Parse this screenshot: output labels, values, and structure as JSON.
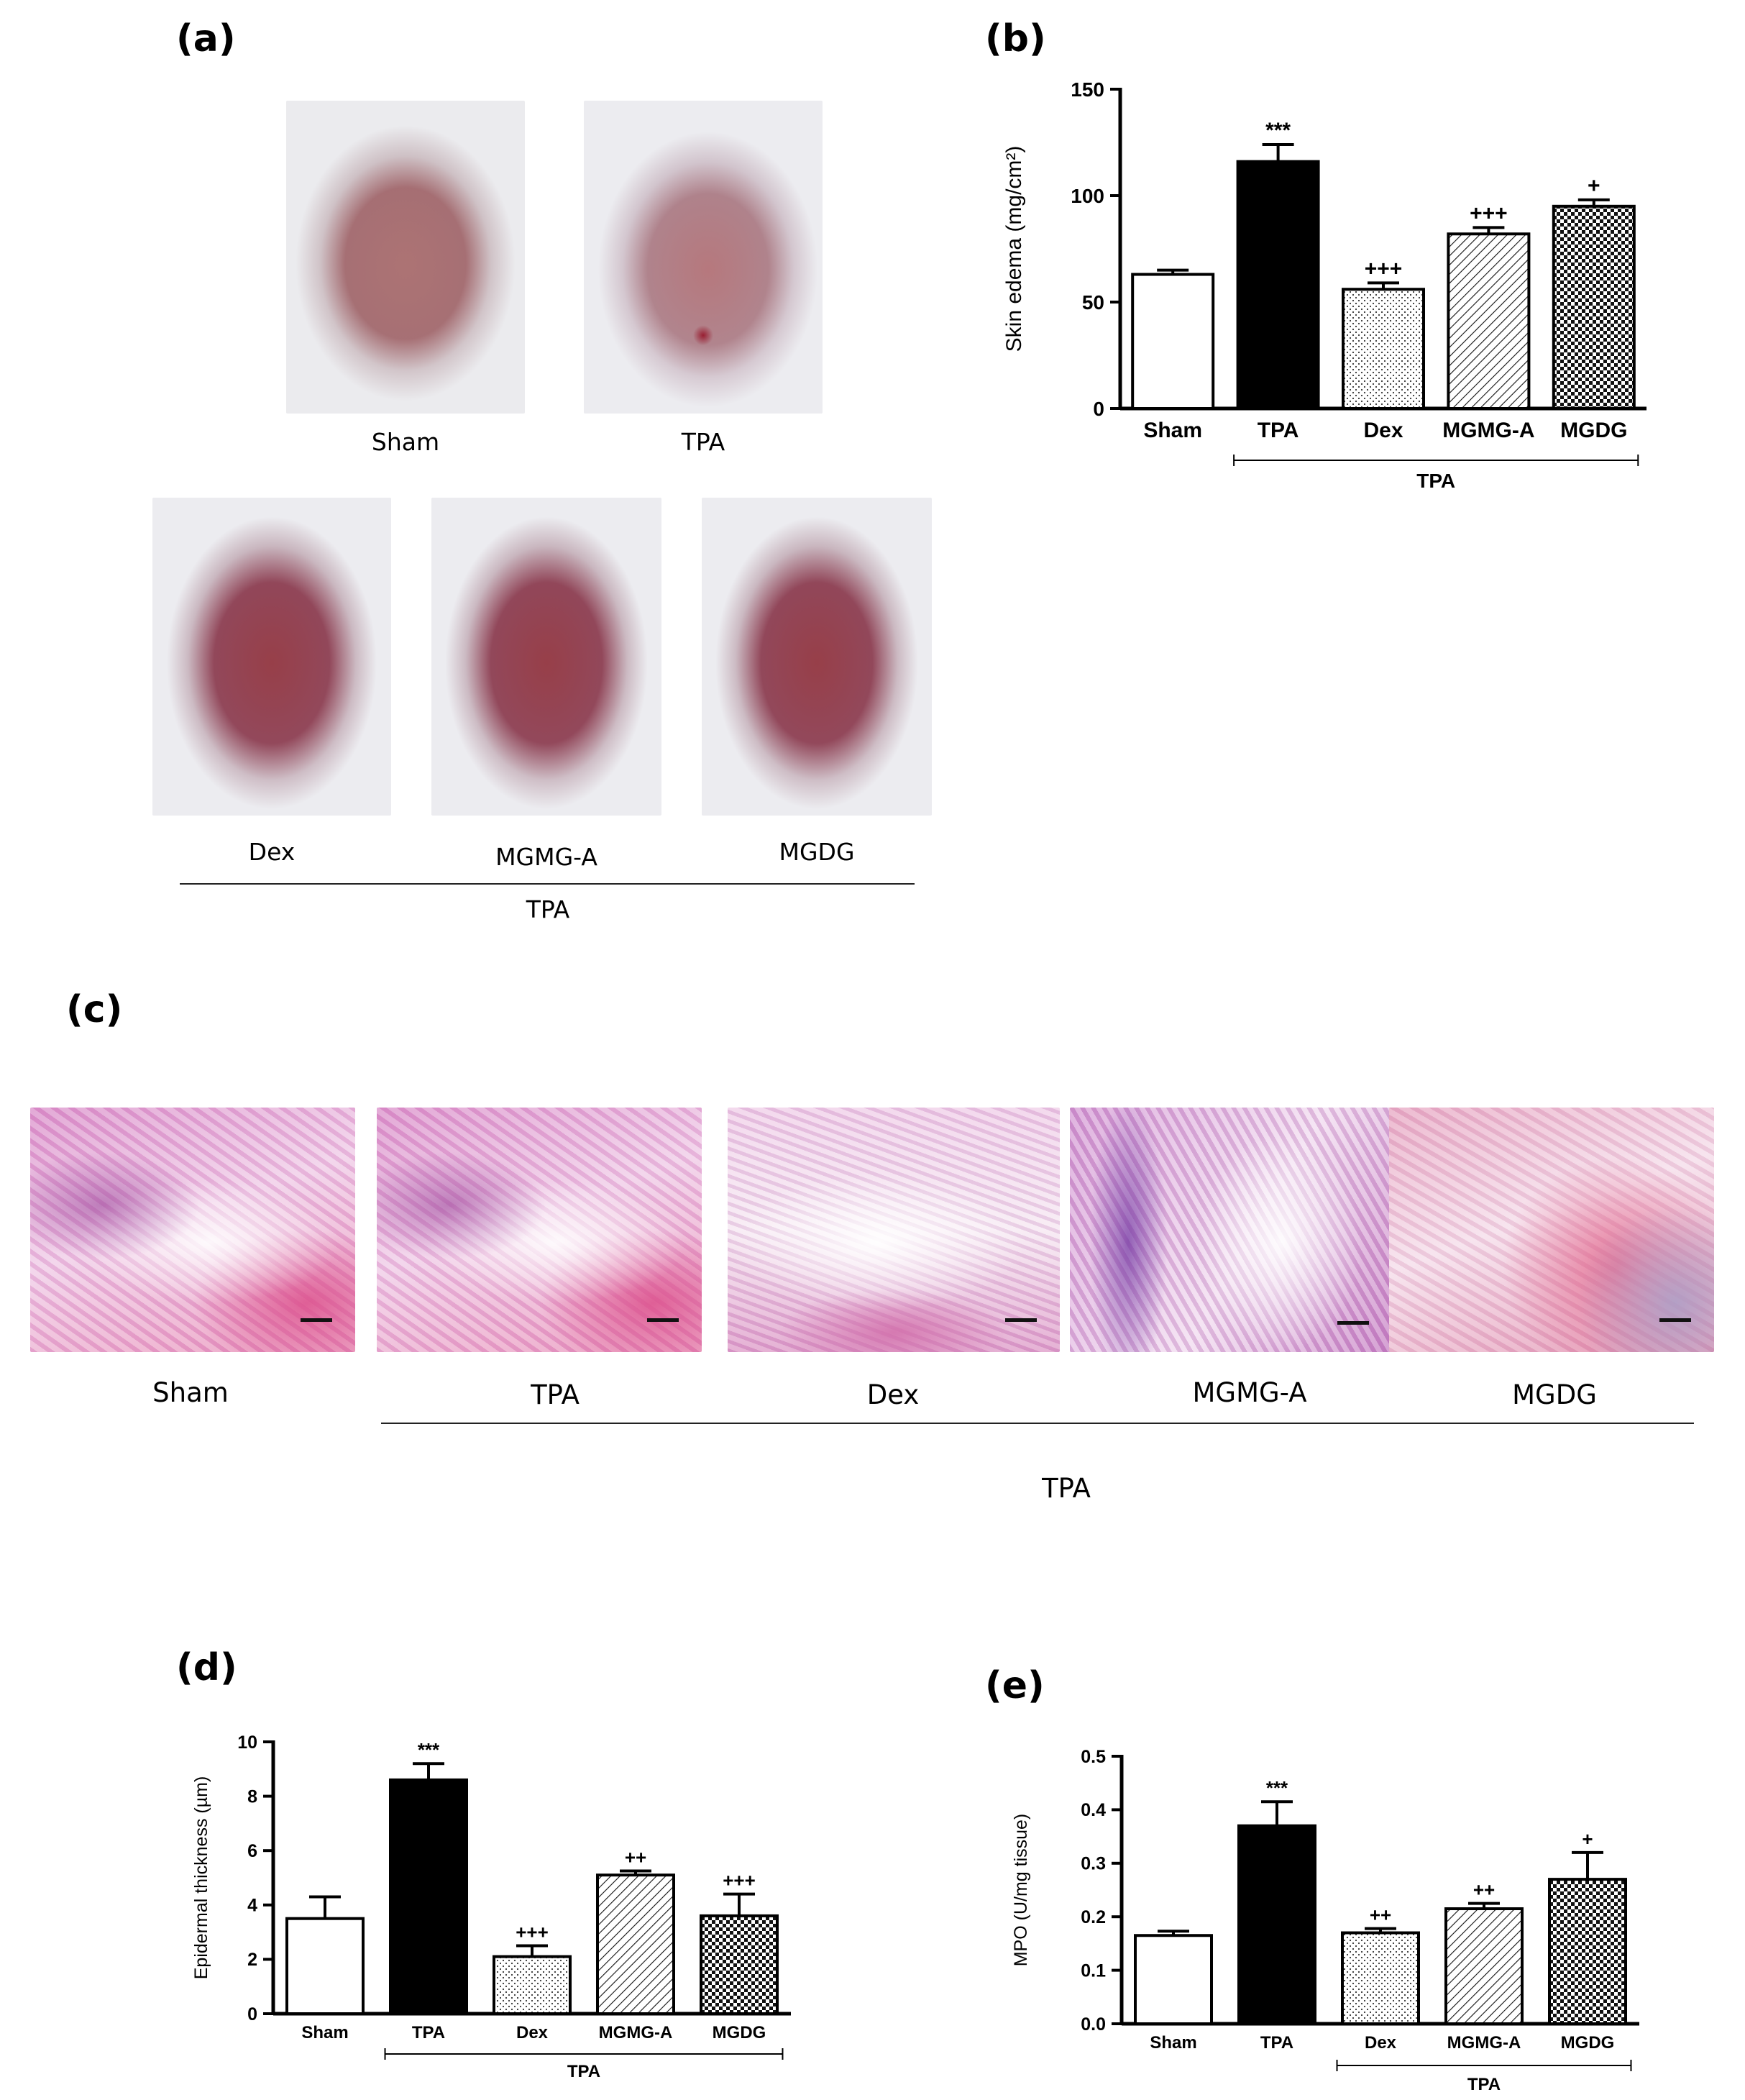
{
  "panels": {
    "a": "(a)",
    "b": "(b)",
    "c": "(c)",
    "d": "(d)",
    "e": "(e)"
  },
  "panel_a": {
    "labels": [
      "Sham",
      "TPA",
      "Dex",
      "MGMG-A",
      "MGDG"
    ],
    "group_label": "TPA"
  },
  "panel_c": {
    "labels": [
      "Sham",
      "TPA",
      "Dex",
      "MGMG-A",
      "MGDG"
    ],
    "group_label": "TPA"
  },
  "chart_data": [
    {
      "id": "b",
      "type": "bar",
      "categories": [
        "Sham",
        "TPA",
        "Dex",
        "MGMG-A",
        "MGDG"
      ],
      "values": [
        63,
        116,
        56,
        82,
        95
      ],
      "errors": [
        2,
        8,
        3,
        3,
        3
      ],
      "significance": [
        "",
        "***",
        "+++",
        "+++",
        "+"
      ],
      "patterns": [
        "white",
        "black",
        "dots",
        "hatch",
        "checker"
      ],
      "ylabel": "Skin edema (mg/cm²)",
      "ylim": [
        0,
        150
      ],
      "yticks": [
        0,
        50,
        100,
        150
      ],
      "group_label": "TPA",
      "group_categories": [
        "TPA",
        "Dex",
        "MGMG-A",
        "MGDG"
      ]
    },
    {
      "id": "d",
      "type": "bar",
      "categories": [
        "Sham",
        "TPA",
        "Dex",
        "MGMG-A",
        "MGDG"
      ],
      "values": [
        3.5,
        8.6,
        2.1,
        5.1,
        3.6
      ],
      "errors": [
        0.8,
        0.6,
        0.4,
        0.15,
        0.8
      ],
      "significance": [
        "",
        "***",
        "+++",
        "++",
        "+++"
      ],
      "patterns": [
        "white",
        "black",
        "dots",
        "hatch",
        "checker"
      ],
      "ylabel": "Epidermal thickness (µm)",
      "ylim": [
        0,
        10
      ],
      "yticks": [
        0,
        2,
        4,
        6,
        8,
        10
      ],
      "group_label": "TPA",
      "group_categories": [
        "TPA",
        "Dex",
        "MGMG-A",
        "MGDG"
      ]
    },
    {
      "id": "e",
      "type": "bar",
      "categories": [
        "Sham",
        "TPA",
        "Dex",
        "MGMG-A",
        "MGDG"
      ],
      "values": [
        0.165,
        0.37,
        0.17,
        0.215,
        0.27
      ],
      "errors": [
        0.008,
        0.045,
        0.008,
        0.01,
        0.05
      ],
      "significance": [
        "",
        "***",
        "++",
        "++",
        "+"
      ],
      "patterns": [
        "white",
        "black",
        "dots",
        "hatch",
        "checker"
      ],
      "ylabel": "MPO (U/mg tissue)",
      "ylim": [
        0,
        0.5
      ],
      "yticks": [
        "0.0",
        "0.1",
        "0.2",
        "0.3",
        "0.4",
        "0.5"
      ],
      "group_label": "TPA",
      "group_categories": [
        "Dex",
        "MGMG-A",
        "MGDG"
      ]
    }
  ]
}
